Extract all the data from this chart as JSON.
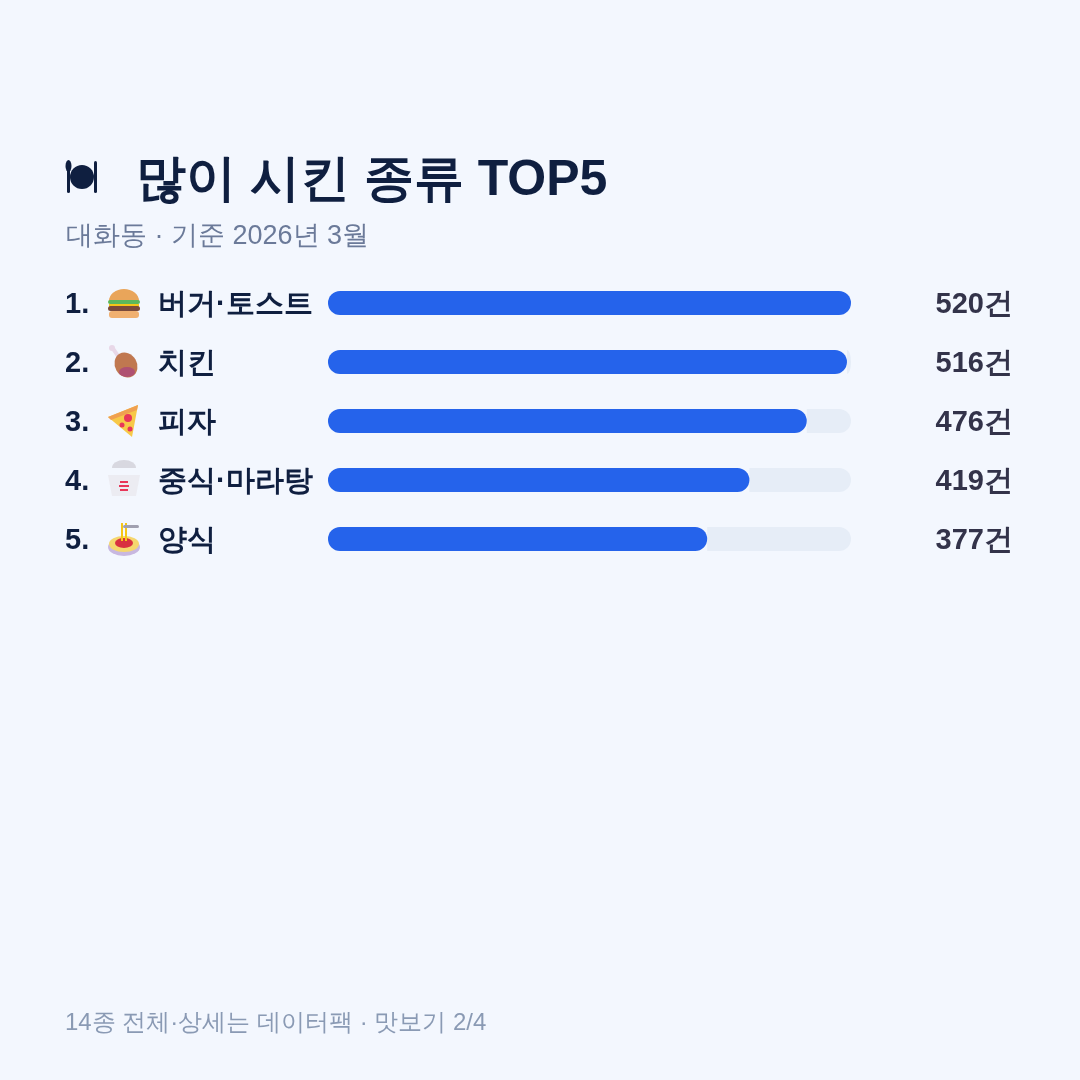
{
  "chart_data": {
    "type": "bar",
    "orientation": "horizontal",
    "title": "많이 시킨 종류 TOP5",
    "subtitle": "대화동 · 기준 2026년 3월",
    "categories": [
      "1. 버거·토스트",
      "2. 치킨",
      "3. 피자",
      "4. 중식·마라탕",
      "5. 양식"
    ],
    "values": [
      520,
      516,
      476,
      419,
      377
    ],
    "value_labels": [
      "520건",
      "516건",
      "476건",
      "419건",
      "377건"
    ],
    "color": "#2563eb",
    "tick_labels": "y",
    "annotations": [
      "14종 전체·상세는 데이터팩 · 맛보기 2/4"
    ]
  }
}
